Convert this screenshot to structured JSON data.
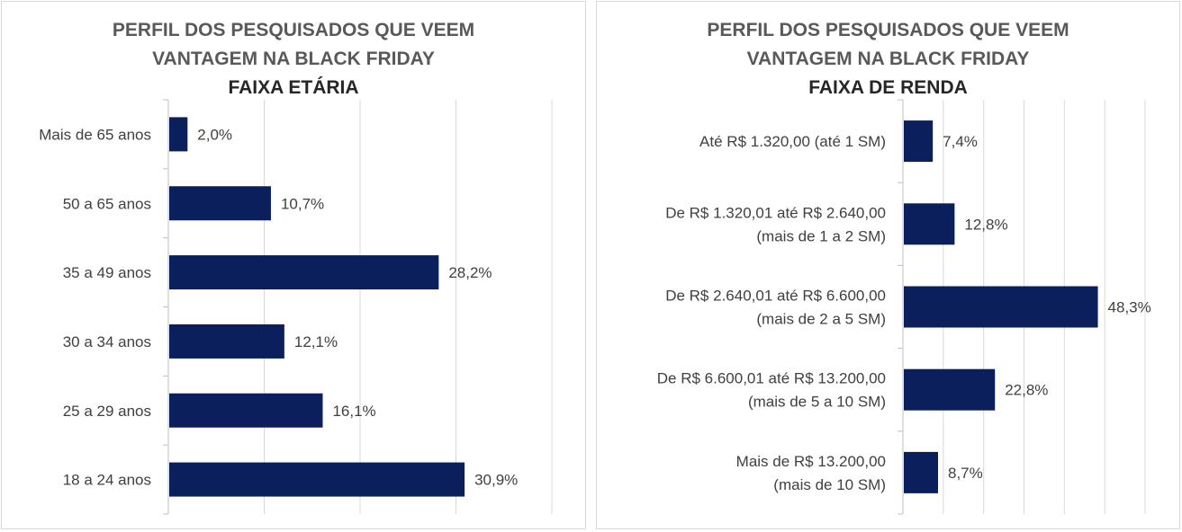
{
  "colors": {
    "bar": "#0b1f5c",
    "grid": "#d9d9d9",
    "axis": "#bfbfbf",
    "text": "#404040",
    "title": "#595959"
  },
  "chart_data": [
    {
      "type": "bar",
      "orientation": "horizontal",
      "title": "PERFIL DOS PESQUISADOS QUE VEEM VANTAGEM NA BLACK FRIDAY",
      "subtitle": "FAIXA ETÁRIA",
      "title_lines": [
        "PERFIL DOS PESQUISADOS QUE VEEM",
        "VANTAGEM NA BLACK FRIDAY"
      ],
      "categories": [
        "Mais de 65 anos",
        "50 a 65 anos",
        "35 a 49 anos",
        "30 a 34 anos",
        "25 a 29 anos",
        "18 a 24 anos"
      ],
      "category_lines": [
        [
          "Mais de 65 anos"
        ],
        [
          "50 a 65 anos"
        ],
        [
          "35 a 49 anos"
        ],
        [
          "30 a 34 anos"
        ],
        [
          "25 a 29 anos"
        ],
        [
          "18 a 24 anos"
        ]
      ],
      "values": [
        2.0,
        10.7,
        28.2,
        12.1,
        16.1,
        30.9
      ],
      "data_labels": [
        "2,0%",
        "10,7%",
        "28,2%",
        "12,1%",
        "16,1%",
        "30,9%"
      ],
      "xlim": [
        0,
        40
      ],
      "grid": true,
      "legend": "none"
    },
    {
      "type": "bar",
      "orientation": "horizontal",
      "title": "PERFIL DOS PESQUISADOS QUE VEEM VANTAGEM NA BLACK FRIDAY",
      "subtitle": "FAIXA DE RENDA",
      "title_lines": [
        "PERFIL DOS PESQUISADOS QUE VEEM",
        "VANTAGEM NA BLACK FRIDAY"
      ],
      "categories": [
        "Até R$ 1.320,00 (até 1 SM)",
        "De R$ 1.320,01 até R$ 2.640,00 (mais de 1 a 2 SM)",
        "De R$ 2.640,01 até R$ 6.600,00 (mais de 2 a 5 SM)",
        "De R$ 6.600,01 até R$ 13.200,00 (mais de 5 a 10 SM)",
        "Mais de R$ 13.200,00 (mais de 10 SM)"
      ],
      "category_lines": [
        [
          "Até R$ 1.320,00 (até 1 SM)"
        ],
        [
          "De R$ 1.320,01 até R$ 2.640,00",
          "(mais de 1 a 2 SM)"
        ],
        [
          "De R$ 2.640,01 até R$ 6.600,00",
          "(mais de 2 a 5 SM)"
        ],
        [
          "De R$ 6.600,01 até R$ 13.200,00",
          "(mais de 5 a 10 SM)"
        ],
        [
          "Mais de R$ 13.200,00",
          "(mais de 10 SM)"
        ]
      ],
      "values": [
        7.4,
        12.8,
        48.3,
        22.8,
        8.7
      ],
      "data_labels": [
        "7,4%",
        "12,8%",
        "48,3%",
        "22,8%",
        "8,7%"
      ],
      "xlim": [
        0,
        60
      ],
      "grid": true,
      "legend": "none"
    }
  ]
}
